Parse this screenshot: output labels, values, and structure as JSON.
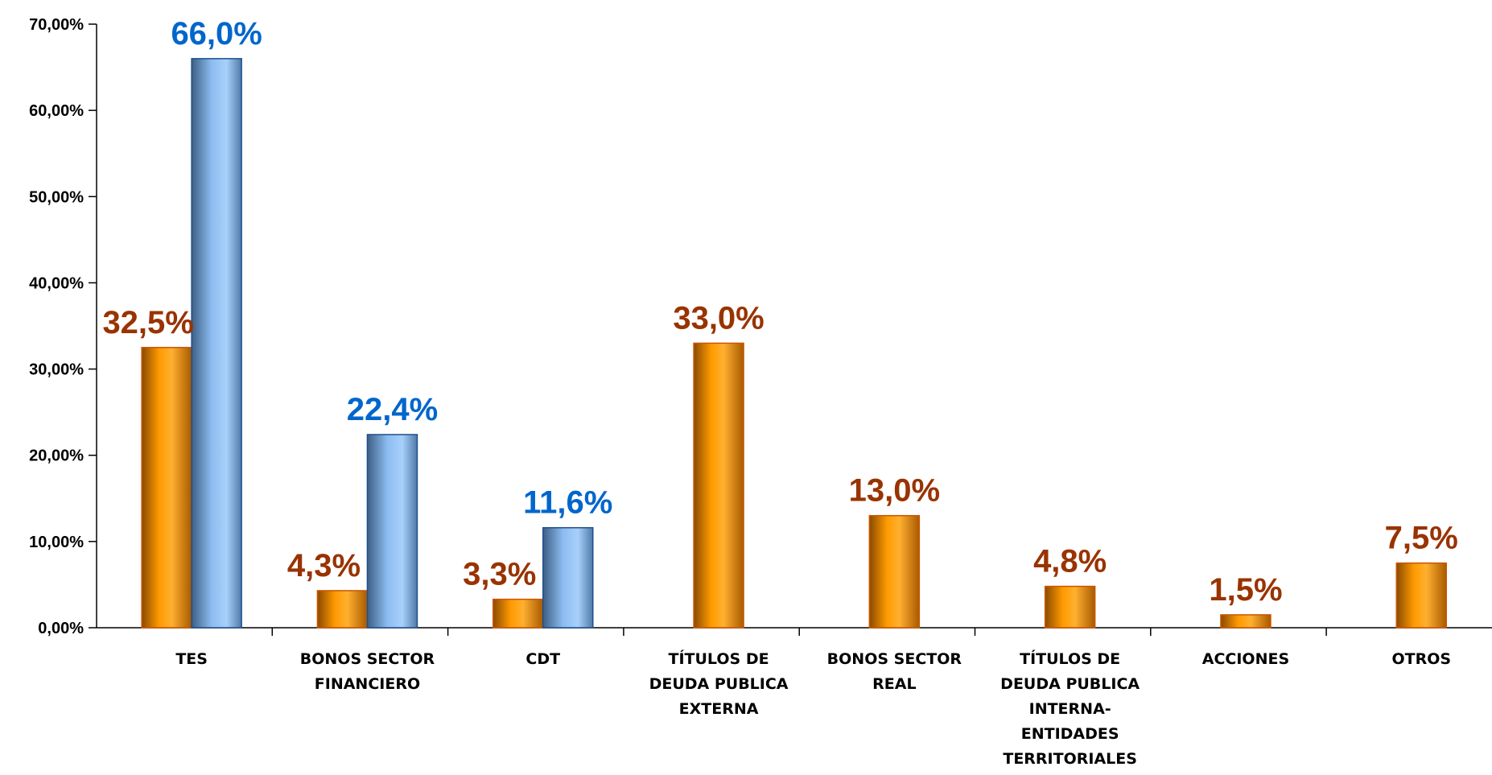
{
  "chart_data": {
    "type": "bar",
    "title": "",
    "xlabel": "",
    "ylabel": "",
    "ylim": [
      0,
      70
    ],
    "y_ticks": [
      "0,00%",
      "10,00%",
      "20,00%",
      "30,00%",
      "40,00%",
      "50,00%",
      "60,00%",
      "70,00%"
    ],
    "grid": false,
    "legend": "none",
    "categories": [
      [
        "TES"
      ],
      [
        "BONOS SECTOR",
        "FINANCIERO"
      ],
      [
        "CDT"
      ],
      [
        "TÍTULOS DE",
        "DEUDA PUBLICA",
        "EXTERNA"
      ],
      [
        "BONOS SECTOR",
        "REAL"
      ],
      [
        "TÍTULOS DE",
        "DEUDA PUBLICA",
        "INTERNA-",
        "ENTIDADES",
        "TERRITORIALES"
      ],
      [
        "ACCIONES"
      ],
      [
        "OTROS"
      ]
    ],
    "series": [
      {
        "color": "#ff9900",
        "label_color": "#993300",
        "values": [
          32.5,
          4.3,
          3.3,
          33.0,
          13.0,
          4.8,
          1.5,
          7.5
        ],
        "labels": [
          "32,5%",
          "4,3%",
          "3,3%",
          "33,0%",
          "13,0%",
          "4,8%",
          "1,5%",
          "7,5%"
        ]
      },
      {
        "color": "#99ccff",
        "label_color": "#0066cc",
        "values": [
          66.0,
          22.4,
          11.6,
          null,
          null,
          null,
          null,
          null
        ],
        "labels": [
          "66,0%",
          "22,4%",
          "11,6%",
          null,
          null,
          null,
          null,
          null
        ]
      }
    ]
  }
}
